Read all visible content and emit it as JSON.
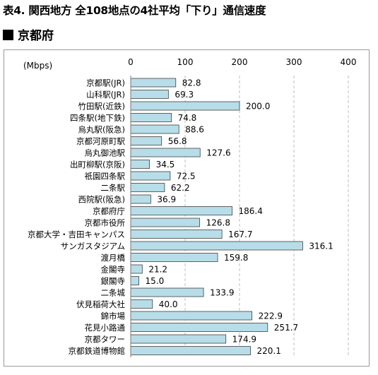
{
  "title": "表4. 関西地方 全108地点の4社平均「下り」通信速度",
  "subtitle": "京都府",
  "chart_data": {
    "type": "bar",
    "orientation": "horizontal",
    "unit_label": "(Mbps)",
    "xlim": [
      0,
      400
    ],
    "ticks": [
      0,
      100,
      200,
      300,
      400
    ],
    "grid": "vertical dashed lines",
    "bar_color": "#b7dde8",
    "bar_edge_color": "#404040",
    "categories": [
      "京都駅(JR)",
      "山科駅(JR)",
      "竹田駅(近鉄)",
      "四条駅(地下鉄)",
      "烏丸駅(阪急)",
      "京都河原町駅",
      "烏丸御池駅",
      "出町柳駅(京阪)",
      "祇園四条駅",
      "二条駅",
      "西院駅(阪急)",
      "京都府庁",
      "京都市役所",
      "京都大学・吉田キャンパス",
      "サンガスタジアム",
      "渡月橋",
      "金閣寺",
      "銀閣寺",
      "二条城",
      "伏見稲荷大社",
      "錦市場",
      "花見小路通",
      "京都タワー",
      "京都鉄道博物館"
    ],
    "values": [
      82.8,
      69.3,
      200.0,
      74.8,
      88.6,
      56.8,
      127.6,
      34.5,
      72.5,
      62.2,
      36.9,
      186.4,
      126.8,
      167.7,
      316.1,
      159.8,
      21.2,
      15.0,
      133.9,
      40.0,
      222.9,
      251.7,
      174.9,
      220.1
    ],
    "value_labels": [
      "82.8",
      "69.3",
      "200.0",
      "74.8",
      "88.6",
      "56.8",
      "127.6",
      "34.5",
      "72.5",
      "62.2",
      "36.9",
      "186.4",
      "126.8",
      "167.7",
      "316.1",
      "159.8",
      "21.2",
      "15.0",
      "133.9",
      "40.0",
      "222.9",
      "251.7",
      "174.9",
      "220.1"
    ]
  }
}
